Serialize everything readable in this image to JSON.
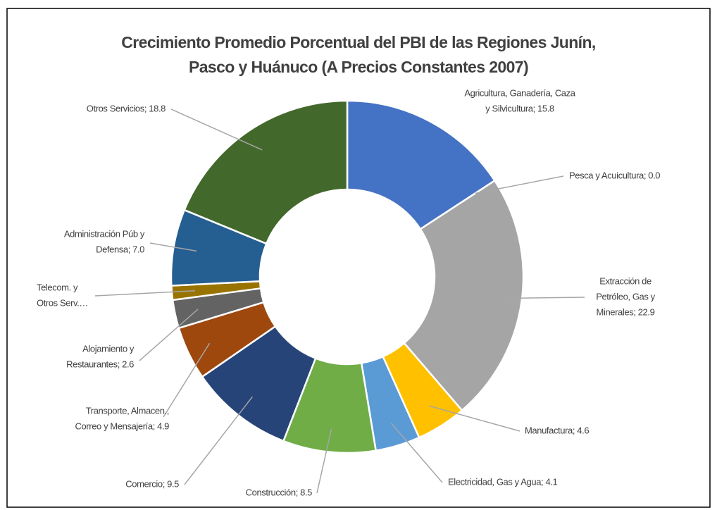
{
  "chart_data": {
    "type": "donut",
    "title": [
      "Crecimiento Promedio Porcentual del PBI de las Regiones Junín,",
      "Pasco y Huánuco (A Precios Constantes 2007)"
    ],
    "categories": [
      "Agricultura, Ganadería, Caza y Silvicultura",
      "Pesca y Acuicultura",
      "Extracción de Petróleo, Gas y Minerales",
      "Manufactura",
      "Electricidad, Gas y Agua",
      "Construcción",
      "Comercio",
      "Transporte, Almacen., Correo y Mensajería",
      "Alojamiento y Restaurantes",
      "Telecom. y Otros Serv.…",
      "Administración Púb y Defensa",
      "Otros Servicios"
    ],
    "values": [
      15.8,
      0.0,
      22.9,
      4.6,
      4.1,
      8.5,
      9.5,
      4.9,
      2.6,
      1.3,
      7.0,
      18.8
    ],
    "value_labels": [
      [
        "Agricultura, Ganadería, Caza",
        "y Silvicultura; 15.8"
      ],
      [
        "Pesca y Acuicultura; 0.0"
      ],
      [
        "Extracción de",
        "Petróleo, Gas y",
        "Minerales; 22.9"
      ],
      [
        "Manufactura; 4.6"
      ],
      [
        "Electricidad, Gas y Agua; 4.1"
      ],
      [
        "Construcción; 8.5"
      ],
      [
        "Comercio; 9.5"
      ],
      [
        "Transporte, Almacen.,",
        "Correo y Mensajería; 4.9"
      ],
      [
        "Alojamiento y",
        "Restaurantes; 2.6"
      ],
      [
        "Telecom. y",
        "Otros Serv.…"
      ],
      [
        "Administración Púb y",
        "Defensa; 7.0"
      ],
      [
        "Otros Servicios; 18.8"
      ]
    ],
    "colors": [
      "#4472c4",
      "#ed7d31",
      "#a5a5a5",
      "#ffc000",
      "#5b9bd5",
      "#70ad47",
      "#264478",
      "#9e480e",
      "#636363",
      "#997300",
      "#255e91",
      "#43682b"
    ]
  }
}
